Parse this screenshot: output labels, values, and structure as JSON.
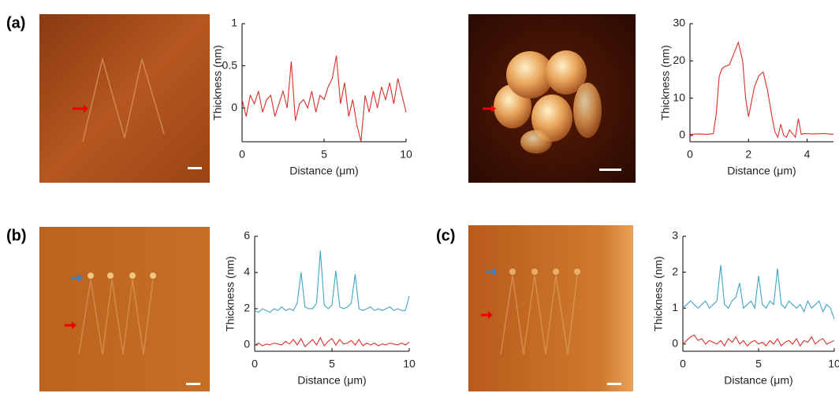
{
  "panel_labels": [
    "(a)",
    "(b)",
    "(c)"
  ],
  "chart_data": [
    {
      "type": "line",
      "xlabel": "Distance (μm)",
      "ylabel": "Thickness (nm)",
      "xlim": [
        0,
        10
      ],
      "xticks": [
        0,
        5,
        10
      ],
      "ylim": [
        -0.4,
        1
      ],
      "yticks": [
        0,
        0.5,
        1
      ],
      "x": [
        0,
        0.25,
        0.5,
        0.75,
        1,
        1.25,
        1.5,
        1.75,
        2,
        2.25,
        2.5,
        2.75,
        3,
        3.25,
        3.5,
        3.75,
        4,
        4.25,
        4.5,
        4.75,
        5,
        5.25,
        5.5,
        5.75,
        6,
        6.25,
        6.5,
        6.75,
        7,
        7.25,
        7.5,
        7.75,
        8,
        8.25,
        8.5,
        8.75,
        9,
        9.25,
        9.5,
        9.75,
        10
      ],
      "series": [
        {
          "color": "#d7312a",
          "values": [
            0.1,
            -0.1,
            0.15,
            0.05,
            0.2,
            -0.05,
            0.1,
            0.15,
            -0.1,
            0.05,
            0.2,
            0.0,
            0.55,
            -0.15,
            0.05,
            0.1,
            0.0,
            0.2,
            -0.05,
            0.15,
            0.1,
            0.25,
            0.35,
            0.62,
            0.05,
            0.3,
            -0.1,
            0.1,
            -0.2,
            -0.4,
            0.15,
            -0.05,
            0.2,
            0.0,
            0.25,
            0.1,
            0.3,
            0.05,
            0.35,
            0.15,
            -0.05
          ]
        }
      ]
    },
    {
      "type": "line",
      "xlabel": "Distance (μm)",
      "ylabel": "Thickness (nm)",
      "xlim": [
        0,
        4.9
      ],
      "xticks": [
        0,
        2,
        4
      ],
      "ylim": [
        -1.7,
        30
      ],
      "yticks": [
        0,
        10,
        20,
        30
      ],
      "x": [
        0,
        0.3,
        0.6,
        0.8,
        0.9,
        1.0,
        1.1,
        1.2,
        1.35,
        1.5,
        1.65,
        1.8,
        1.9,
        2.0,
        2.1,
        2.2,
        2.35,
        2.5,
        2.65,
        2.8,
        2.9,
        3.0,
        3.1,
        3.2,
        3.3,
        3.4,
        3.5,
        3.6,
        3.7,
        3.8,
        3.9,
        4.2,
        4.6,
        4.9
      ],
      "series": [
        {
          "color": "#d7312a",
          "values": [
            0.3,
            0.4,
            0.3,
            0.5,
            6,
            16,
            18,
            18.5,
            19,
            22,
            25,
            20,
            10,
            5,
            9,
            13,
            16,
            17,
            12,
            5,
            1,
            -0.5,
            3,
            0,
            -0.5,
            1.5,
            0.5,
            -0.5,
            4.5,
            0.3,
            0.5,
            0.4,
            0.5,
            0.3
          ]
        }
      ]
    },
    {
      "type": "line",
      "xlabel": "Distance (μm)",
      "ylabel": "Thickness (nm)",
      "xlim": [
        0,
        10
      ],
      "xticks": [
        0,
        5,
        10
      ],
      "ylim": [
        -0.35,
        6
      ],
      "yticks": [
        0,
        2,
        4,
        6
      ],
      "x": [
        0,
        0.25,
        0.5,
        0.75,
        1,
        1.25,
        1.5,
        1.75,
        2,
        2.25,
        2.5,
        2.75,
        3,
        3.25,
        3.5,
        3.75,
        4,
        4.25,
        4.5,
        4.75,
        5,
        5.25,
        5.5,
        5.75,
        6,
        6.25,
        6.5,
        6.75,
        7,
        7.25,
        7.5,
        7.75,
        8,
        8.25,
        8.5,
        8.75,
        9,
        9.25,
        9.5,
        9.75,
        10
      ],
      "series": [
        {
          "color": "#3fa5c4",
          "values": [
            1.9,
            1.8,
            2.0,
            1.9,
            1.8,
            2.0,
            1.9,
            2.1,
            1.9,
            2.0,
            1.9,
            2.3,
            4.0,
            2.1,
            2.0,
            2.0,
            2.3,
            5.2,
            2.2,
            2.0,
            2.2,
            4.1,
            2.1,
            2.0,
            2.1,
            2.3,
            3.9,
            2.0,
            1.9,
            2.0,
            2.1,
            1.9,
            2.0,
            1.9,
            2.0,
            2.1,
            1.9,
            2.0,
            1.9,
            1.9,
            2.7
          ]
        },
        {
          "color": "#d7312a",
          "values": [
            0.0,
            0.1,
            -0.05,
            0.05,
            0.0,
            0.1,
            0.05,
            0.0,
            0.2,
            0.05,
            0.3,
            0.0,
            0.35,
            -0.1,
            0.1,
            0.3,
            0.0,
            0.4,
            -0.05,
            0.2,
            0.35,
            0.0,
            0.3,
            0.05,
            0.1,
            0.25,
            0.0,
            0.3,
            -0.05,
            0.1,
            0.0,
            0.1,
            -0.05,
            0.05,
            0.0,
            0.1,
            0.05,
            0.0,
            0.1,
            0.0,
            0.15
          ]
        }
      ]
    },
    {
      "type": "line",
      "xlabel": "Distance (μm)",
      "ylabel": "Thickness (nm)",
      "xlim": [
        0,
        10
      ],
      "xticks": [
        0,
        5,
        10
      ],
      "ylim": [
        -0.2,
        3
      ],
      "yticks": [
        0,
        1,
        2,
        3
      ],
      "x": [
        0,
        0.25,
        0.5,
        0.75,
        1,
        1.25,
        1.5,
        1.75,
        2,
        2.25,
        2.5,
        2.75,
        3,
        3.25,
        3.5,
        3.75,
        4,
        4.25,
        4.5,
        4.75,
        5,
        5.25,
        5.5,
        5.75,
        6,
        6.25,
        6.5,
        6.75,
        7,
        7.25,
        7.5,
        7.75,
        8,
        8.25,
        8.5,
        8.75,
        9,
        9.25,
        9.5,
        9.75,
        10
      ],
      "series": [
        {
          "color": "#3fa5c4",
          "values": [
            1.0,
            1.1,
            1.2,
            1.1,
            1.0,
            1.1,
            1.2,
            1.0,
            1.1,
            1.2,
            2.2,
            1.1,
            1.0,
            1.2,
            1.3,
            1.7,
            1.0,
            1.1,
            1.2,
            1.0,
            1.9,
            1.1,
            1.0,
            1.2,
            1.1,
            2.1,
            1.1,
            1.0,
            1.2,
            1.1,
            1.0,
            1.1,
            0.9,
            1.2,
            1.0,
            1.1,
            1.2,
            0.9,
            1.1,
            1.0,
            0.7
          ]
        },
        {
          "color": "#d7312a",
          "values": [
            0.0,
            0.1,
            0.2,
            0.25,
            0.1,
            0.15,
            0.0,
            0.1,
            0.05,
            0.0,
            0.1,
            -0.05,
            0.15,
            0.05,
            0.2,
            0.0,
            0.1,
            -0.05,
            0.05,
            0.1,
            0.0,
            0.05,
            -0.05,
            0.1,
            0.0,
            0.15,
            -0.05,
            0.05,
            0.1,
            0.0,
            0.15,
            -0.05,
            0.1,
            0.05,
            0.2,
            0.0,
            0.1,
            0.15,
            0.0,
            0.05,
            0.1
          ]
        }
      ]
    }
  ]
}
